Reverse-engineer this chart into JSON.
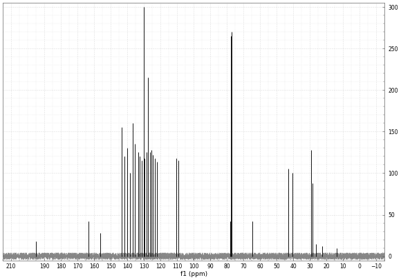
{
  "title": "",
  "xlabel": "f1 (ppm)",
  "ylabel": "",
  "xlim": [
    215,
    -15
  ],
  "ylim": [
    -5,
    305
  ],
  "yticks": [
    0,
    50,
    100,
    150,
    200,
    250,
    300
  ],
  "xticks": [
    210,
    190,
    180,
    170,
    160,
    150,
    140,
    130,
    120,
    110,
    100,
    90,
    80,
    70,
    60,
    50,
    40,
    30,
    20,
    10,
    0,
    -10
  ],
  "background_color": "#ffffff",
  "grid_color": "#bbbbbb",
  "peaks": [
    {
      "ppm": 195.0,
      "intensity": 18
    },
    {
      "ppm": 163.5,
      "intensity": 42
    },
    {
      "ppm": 156.5,
      "intensity": 28
    },
    {
      "ppm": 143.5,
      "intensity": 155
    },
    {
      "ppm": 141.8,
      "intensity": 120
    },
    {
      "ppm": 140.0,
      "intensity": 130
    },
    {
      "ppm": 138.5,
      "intensity": 100
    },
    {
      "ppm": 136.8,
      "intensity": 160
    },
    {
      "ppm": 135.5,
      "intensity": 135
    },
    {
      "ppm": 133.5,
      "intensity": 125
    },
    {
      "ppm": 132.5,
      "intensity": 120
    },
    {
      "ppm": 131.2,
      "intensity": 115
    },
    {
      "ppm": 130.2,
      "intensity": 300
    },
    {
      "ppm": 129.5,
      "intensity": 118
    },
    {
      "ppm": 128.5,
      "intensity": 125
    },
    {
      "ppm": 127.8,
      "intensity": 215
    },
    {
      "ppm": 126.5,
      "intensity": 125
    },
    {
      "ppm": 125.5,
      "intensity": 128
    },
    {
      "ppm": 124.5,
      "intensity": 122
    },
    {
      "ppm": 123.5,
      "intensity": 118
    },
    {
      "ppm": 122.2,
      "intensity": 114
    },
    {
      "ppm": 110.5,
      "intensity": 118
    },
    {
      "ppm": 109.2,
      "intensity": 115
    },
    {
      "ppm": 78.0,
      "intensity": 42
    },
    {
      "ppm": 77.5,
      "intensity": 265
    },
    {
      "ppm": 77.0,
      "intensity": 270
    },
    {
      "ppm": 64.5,
      "intensity": 42
    },
    {
      "ppm": 43.0,
      "intensity": 105
    },
    {
      "ppm": 40.5,
      "intensity": 100
    },
    {
      "ppm": 29.5,
      "intensity": 128
    },
    {
      "ppm": 28.5,
      "intensity": 88
    },
    {
      "ppm": 26.5,
      "intensity": 15
    },
    {
      "ppm": 22.5,
      "intensity": 12
    },
    {
      "ppm": 14.0,
      "intensity": 10
    }
  ],
  "line_color": "#111111",
  "noise_color": "#555555",
  "noise_seed": 42,
  "noise_level": 2.5
}
